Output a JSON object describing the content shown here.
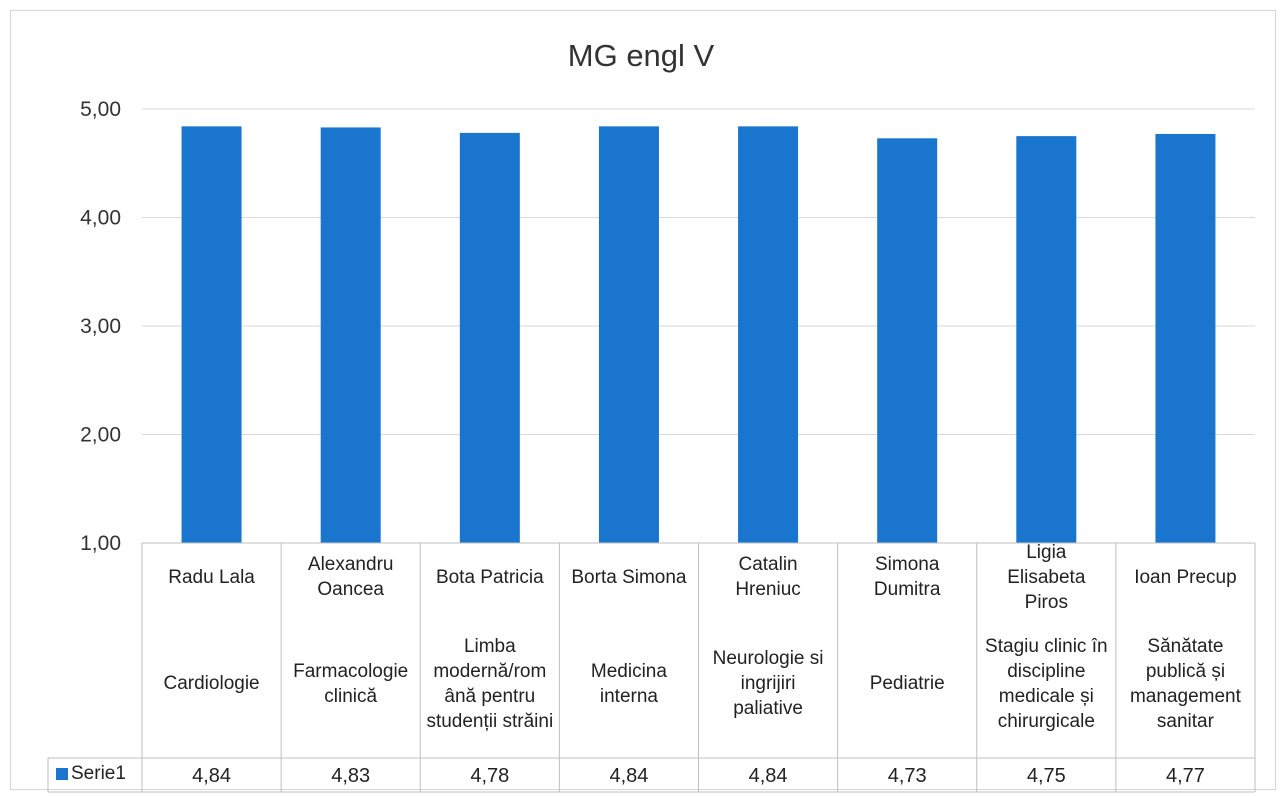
{
  "chart_data": {
    "type": "bar",
    "title": "MG engl V",
    "yticks": [
      "1,00",
      "2,00",
      "3,00",
      "4,00",
      "5,00"
    ],
    "ylim": [
      1,
      5
    ],
    "categories": [
      {
        "name": "Radu Lala",
        "dept": "Cardiologie"
      },
      {
        "name": "Alexandru Oancea",
        "dept": "Farmacologie clinică"
      },
      {
        "name": "Bota Patricia",
        "dept": "Limba modernă/rom ână pentru studenții străini"
      },
      {
        "name": "Borta Simona",
        "dept": "Medicina interna"
      },
      {
        "name": "Catalin Hreniuc",
        "dept": "Neurologie si ingrijiri paliative"
      },
      {
        "name": "Simona Dumitra",
        "dept": "Pediatrie"
      },
      {
        "name": "Ligia Elisabeta Piros",
        "dept": "Stagiu clinic în discipline medicale și chirurgicale"
      },
      {
        "name": "Ioan Precup",
        "dept": "Sănătate publică și management sanitar"
      }
    ],
    "series": [
      {
        "name": "Serie1",
        "color": "#1a75cf",
        "values": [
          4.84,
          4.83,
          4.78,
          4.84,
          4.84,
          4.73,
          4.75,
          4.77
        ],
        "labels": [
          "4,84",
          "4,83",
          "4,78",
          "4,84",
          "4,84",
          "4,73",
          "4,75",
          "4,77"
        ]
      }
    ],
    "grid": true,
    "legend": "data-table"
  }
}
